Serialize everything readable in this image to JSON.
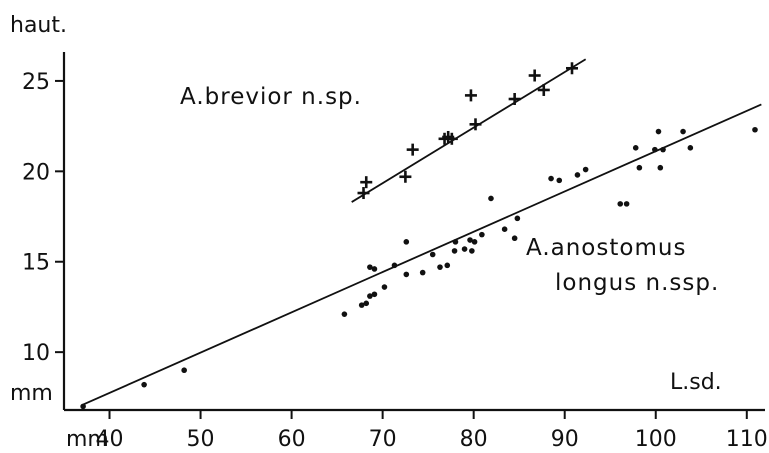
{
  "chart_data": {
    "type": "scatter",
    "ylabel": "haut.",
    "ylabel_unit": "mm",
    "xlabel": "L.sd.",
    "xlabel_unit": "mm",
    "xlim": [
      35,
      112
    ],
    "ylim": [
      6.8,
      26.6
    ],
    "x_ticks": [
      40,
      50,
      60,
      70,
      80,
      90,
      100,
      110
    ],
    "x_tick_labels": [
      "40",
      "50",
      "60",
      "70",
      "80",
      "90",
      "100",
      "110"
    ],
    "y_ticks": [
      10,
      15,
      20,
      25
    ],
    "y_tick_labels": [
      "10",
      "15",
      "20",
      "25"
    ],
    "grid": false,
    "series": [
      {
        "name": "A.brevior n.sp.",
        "marker": "plus",
        "points": [
          [
            67.9,
            18.8
          ],
          [
            68.2,
            19.4
          ],
          [
            72.5,
            19.7
          ],
          [
            73.3,
            21.2
          ],
          [
            76.8,
            21.8
          ],
          [
            77.2,
            21.9
          ],
          [
            77.6,
            21.8
          ],
          [
            79.7,
            24.2
          ],
          [
            80.2,
            22.6
          ],
          [
            84.5,
            24.0
          ],
          [
            86.7,
            25.3
          ],
          [
            87.7,
            24.5
          ],
          [
            90.8,
            25.7
          ]
        ],
        "fit_line": [
          [
            66.6,
            18.3
          ],
          [
            92.3,
            26.2
          ]
        ]
      },
      {
        "name": "A.anostomus longus n.ssp.",
        "label_lines": [
          "A.anostomus",
          "longus n.ssp."
        ],
        "marker": "dot",
        "points": [
          [
            37.1,
            7.0
          ],
          [
            43.8,
            8.2
          ],
          [
            48.2,
            9.0
          ],
          [
            65.8,
            12.1
          ],
          [
            67.7,
            12.6
          ],
          [
            68.2,
            12.7
          ],
          [
            68.6,
            13.1
          ],
          [
            69.1,
            13.2
          ],
          [
            70.2,
            13.6
          ],
          [
            68.6,
            14.7
          ],
          [
            69.1,
            14.6
          ],
          [
            71.3,
            14.8
          ],
          [
            72.6,
            14.3
          ],
          [
            72.6,
            16.1
          ],
          [
            74.4,
            14.4
          ],
          [
            75.5,
            15.4
          ],
          [
            76.3,
            14.7
          ],
          [
            77.1,
            14.8
          ],
          [
            77.9,
            15.6
          ],
          [
            78.0,
            16.1
          ],
          [
            79.0,
            15.7
          ],
          [
            79.6,
            16.2
          ],
          [
            80.1,
            16.1
          ],
          [
            80.9,
            16.5
          ],
          [
            79.8,
            15.6
          ],
          [
            81.9,
            18.5
          ],
          [
            83.4,
            16.8
          ],
          [
            84.5,
            16.3
          ],
          [
            84.8,
            17.4
          ],
          [
            88.5,
            19.6
          ],
          [
            89.4,
            19.5
          ],
          [
            91.4,
            19.8
          ],
          [
            92.3,
            20.1
          ],
          [
            96.1,
            18.2
          ],
          [
            96.8,
            18.2
          ],
          [
            97.8,
            21.3
          ],
          [
            98.2,
            20.2
          ],
          [
            99.9,
            21.2
          ],
          [
            100.3,
            22.2
          ],
          [
            100.5,
            20.2
          ],
          [
            100.8,
            21.2
          ],
          [
            103.0,
            22.2
          ],
          [
            103.8,
            21.3
          ],
          [
            110.9,
            22.3
          ]
        ],
        "fit_line": [
          [
            37.1,
            7.1
          ],
          [
            111.6,
            23.7
          ]
        ]
      }
    ]
  }
}
